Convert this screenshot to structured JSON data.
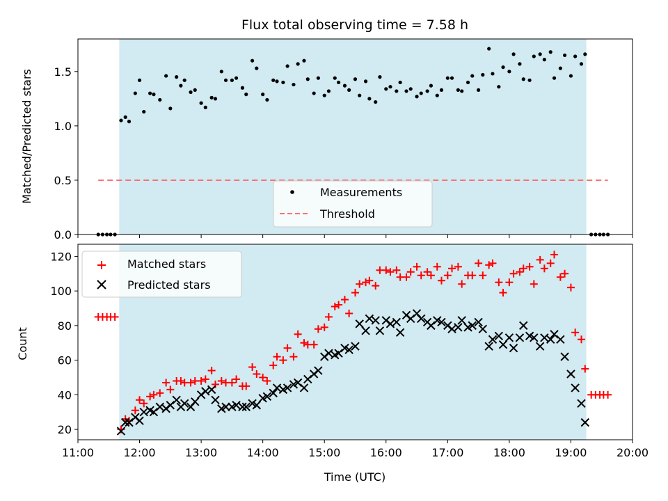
{
  "chart_data": [
    {
      "type": "scatter",
      "title": "Flux total observing time = 7.58 h",
      "xlabel": "",
      "ylabel": "Matched/Predicted stars",
      "xlim": [
        11.0,
        20.0
      ],
      "ylim": [
        0.0,
        1.8
      ],
      "yticks": [
        0.0,
        0.5,
        1.0,
        1.5
      ],
      "ytick_labels": [
        "0.0",
        "0.5",
        "1.0",
        "1.5"
      ],
      "shaded_interval": [
        11.67,
        19.25
      ],
      "shade_color": "#add8e6",
      "legend": {
        "placement": "lower-center",
        "entries": [
          "Measurements",
          "Threshold"
        ]
      },
      "threshold": {
        "name": "Threshold",
        "y": 0.5,
        "x": [
          11.33,
          19.6
        ],
        "color": "#ff7070",
        "style": "dashed"
      },
      "series": [
        {
          "name": "Measurements",
          "marker": "dot",
          "color": "#000000",
          "x": [
            11.33,
            11.4,
            11.47,
            11.53,
            11.6,
            11.7,
            11.77,
            11.83,
            11.93,
            12.0,
            12.07,
            12.17,
            12.23,
            12.33,
            12.43,
            12.5,
            12.6,
            12.67,
            12.73,
            12.83,
            12.9,
            13.0,
            13.07,
            13.17,
            13.23,
            13.33,
            13.4,
            13.5,
            13.57,
            13.67,
            13.73,
            13.83,
            13.9,
            14.0,
            14.07,
            14.17,
            14.23,
            14.33,
            14.4,
            14.5,
            14.57,
            14.67,
            14.73,
            14.83,
            14.9,
            15.0,
            15.07,
            15.17,
            15.23,
            15.33,
            15.4,
            15.5,
            15.57,
            15.67,
            15.73,
            15.83,
            15.9,
            16.0,
            16.07,
            16.17,
            16.23,
            16.33,
            16.4,
            16.5,
            16.57,
            16.67,
            16.73,
            16.83,
            16.9,
            17.0,
            17.07,
            17.17,
            17.23,
            17.33,
            17.4,
            17.5,
            17.57,
            17.67,
            17.73,
            17.83,
            17.9,
            18.0,
            18.07,
            18.17,
            18.23,
            18.33,
            18.4,
            18.5,
            18.57,
            18.67,
            18.73,
            18.83,
            18.9,
            19.0,
            19.07,
            19.17,
            19.23,
            19.33,
            19.4,
            19.47,
            19.53,
            19.6
          ],
          "y": [
            0,
            0,
            0,
            0,
            0,
            1.05,
            1.08,
            1.04,
            1.3,
            1.42,
            1.13,
            1.3,
            1.29,
            1.24,
            1.46,
            1.16,
            1.45,
            1.37,
            1.42,
            1.31,
            1.33,
            1.21,
            1.17,
            1.26,
            1.25,
            1.5,
            1.42,
            1.42,
            1.44,
            1.35,
            1.29,
            1.6,
            1.53,
            1.29,
            1.24,
            1.42,
            1.41,
            1.4,
            1.55,
            1.38,
            1.57,
            1.6,
            1.43,
            1.3,
            1.44,
            1.28,
            1.32,
            1.44,
            1.4,
            1.37,
            1.33,
            1.43,
            1.28,
            1.41,
            1.25,
            1.22,
            1.45,
            1.34,
            1.36,
            1.32,
            1.4,
            1.32,
            1.34,
            1.27,
            1.3,
            1.32,
            1.37,
            1.28,
            1.33,
            1.44,
            1.44,
            1.33,
            1.32,
            1.4,
            1.46,
            1.33,
            1.47,
            1.71,
            1.48,
            1.36,
            1.54,
            1.5,
            1.66,
            1.57,
            1.43,
            1.42,
            1.64,
            1.66,
            1.61,
            1.68,
            1.44,
            1.53,
            1.65,
            1.46,
            1.64,
            1.57,
            1.66,
            0,
            0,
            0,
            0,
            0
          ]
        }
      ]
    },
    {
      "type": "scatter",
      "title": "",
      "xlabel": "Time (UTC)",
      "ylabel": "Count",
      "xlim": [
        11.0,
        20.0
      ],
      "ylim": [
        14,
        127
      ],
      "xticks": [
        11,
        12,
        13,
        14,
        15,
        16,
        17,
        18,
        19,
        20
      ],
      "xtick_labels": [
        "11:00",
        "12:00",
        "13:00",
        "14:00",
        "15:00",
        "16:00",
        "17:00",
        "18:00",
        "19:00",
        "20:00"
      ],
      "yticks": [
        20,
        40,
        60,
        80,
        100,
        120
      ],
      "ytick_labels": [
        "20",
        "40",
        "60",
        "80",
        "100",
        "120"
      ],
      "shaded_interval": [
        11.67,
        19.25
      ],
      "shade_color": "#add8e6",
      "legend": {
        "placement": "upper-left",
        "entries": [
          "Matched stars",
          "Predicted stars"
        ]
      },
      "series": [
        {
          "name": "Matched stars",
          "marker": "plus",
          "color": "#ff0000",
          "x": [
            11.33,
            11.4,
            11.47,
            11.53,
            11.6,
            11.7,
            11.77,
            11.83,
            11.93,
            12.0,
            12.07,
            12.17,
            12.23,
            12.33,
            12.43,
            12.5,
            12.6,
            12.67,
            12.73,
            12.83,
            12.9,
            13.0,
            13.07,
            13.17,
            13.23,
            13.33,
            13.4,
            13.5,
            13.57,
            13.67,
            13.73,
            13.83,
            13.9,
            14.0,
            14.07,
            14.17,
            14.23,
            14.33,
            14.4,
            14.5,
            14.57,
            14.67,
            14.73,
            14.83,
            14.9,
            15.0,
            15.07,
            15.17,
            15.23,
            15.33,
            15.4,
            15.5,
            15.57,
            15.67,
            15.73,
            15.83,
            15.9,
            16.0,
            16.07,
            16.17,
            16.23,
            16.33,
            16.4,
            16.5,
            16.57,
            16.67,
            16.73,
            16.83,
            16.9,
            17.0,
            17.07,
            17.17,
            17.23,
            17.33,
            17.4,
            17.5,
            17.57,
            17.67,
            17.73,
            17.83,
            17.9,
            18.0,
            18.07,
            18.17,
            18.23,
            18.33,
            18.4,
            18.5,
            18.57,
            18.67,
            18.73,
            18.83,
            18.9,
            19.0,
            19.07,
            19.17,
            19.23,
            19.33,
            19.4,
            19.47,
            19.53,
            19.6
          ],
          "y": [
            85,
            85,
            85,
            85,
            85,
            20,
            26,
            25,
            31,
            37,
            35,
            39,
            40,
            41,
            47,
            43,
            48,
            48,
            47,
            47,
            48,
            48,
            49,
            54,
            46,
            48,
            47,
            47,
            49,
            45,
            45,
            56,
            52,
            50,
            48,
            57,
            62,
            60,
            67,
            62,
            75,
            70,
            69,
            69,
            78,
            79,
            85,
            91,
            92,
            95,
            87,
            99,
            104,
            105,
            106,
            103,
            112,
            112,
            111,
            112,
            108,
            108,
            111,
            114,
            109,
            111,
            109,
            114,
            106,
            109,
            113,
            114,
            104,
            109,
            109,
            116,
            109,
            115,
            116,
            105,
            99,
            105,
            110,
            111,
            113,
            114,
            104,
            118,
            113,
            116,
            121,
            108,
            110,
            102,
            76,
            72,
            55,
            40,
            40,
            40,
            40,
            40
          ]
        },
        {
          "name": "Predicted stars",
          "marker": "x",
          "color": "#000000",
          "x": [
            11.7,
            11.77,
            11.83,
            11.93,
            12.0,
            12.07,
            12.17,
            12.23,
            12.33,
            12.43,
            12.5,
            12.6,
            12.67,
            12.73,
            12.83,
            12.9,
            13.0,
            13.07,
            13.17,
            13.23,
            13.33,
            13.4,
            13.5,
            13.57,
            13.67,
            13.73,
            13.83,
            13.9,
            14.0,
            14.07,
            14.17,
            14.23,
            14.33,
            14.4,
            14.5,
            14.57,
            14.67,
            14.73,
            14.83,
            14.9,
            15.0,
            15.07,
            15.17,
            15.23,
            15.33,
            15.4,
            15.5,
            15.57,
            15.67,
            15.73,
            15.83,
            15.9,
            16.0,
            16.07,
            16.17,
            16.23,
            16.33,
            16.4,
            16.5,
            16.57,
            16.67,
            16.73,
            16.83,
            16.9,
            17.0,
            17.07,
            17.17,
            17.23,
            17.33,
            17.4,
            17.5,
            17.57,
            17.67,
            17.73,
            17.83,
            17.9,
            18.0,
            18.07,
            18.17,
            18.23,
            18.33,
            18.4,
            18.5,
            18.57,
            18.67,
            18.73,
            18.83,
            18.9,
            19.0,
            19.07,
            19.17,
            19.23
          ],
          "y": [
            19,
            24,
            24,
            27,
            25,
            30,
            31,
            30,
            33,
            32,
            34,
            37,
            33,
            35,
            33,
            36,
            40,
            42,
            43,
            37,
            32,
            33,
            33,
            34,
            33,
            33,
            35,
            34,
            38,
            39,
            41,
            44,
            43,
            44,
            46,
            47,
            44,
            49,
            52,
            54,
            62,
            64,
            63,
            64,
            67,
            66,
            68,
            81,
            77,
            84,
            83,
            77,
            83,
            81,
            82,
            76,
            86,
            84,
            87,
            84,
            82,
            80,
            83,
            82,
            80,
            78,
            79,
            83,
            79,
            80,
            82,
            78,
            68,
            72,
            74,
            69,
            73,
            67,
            73,
            80,
            74,
            73,
            68,
            73,
            72,
            75,
            72,
            62,
            52,
            44,
            35,
            24
          ]
        }
      ]
    }
  ]
}
